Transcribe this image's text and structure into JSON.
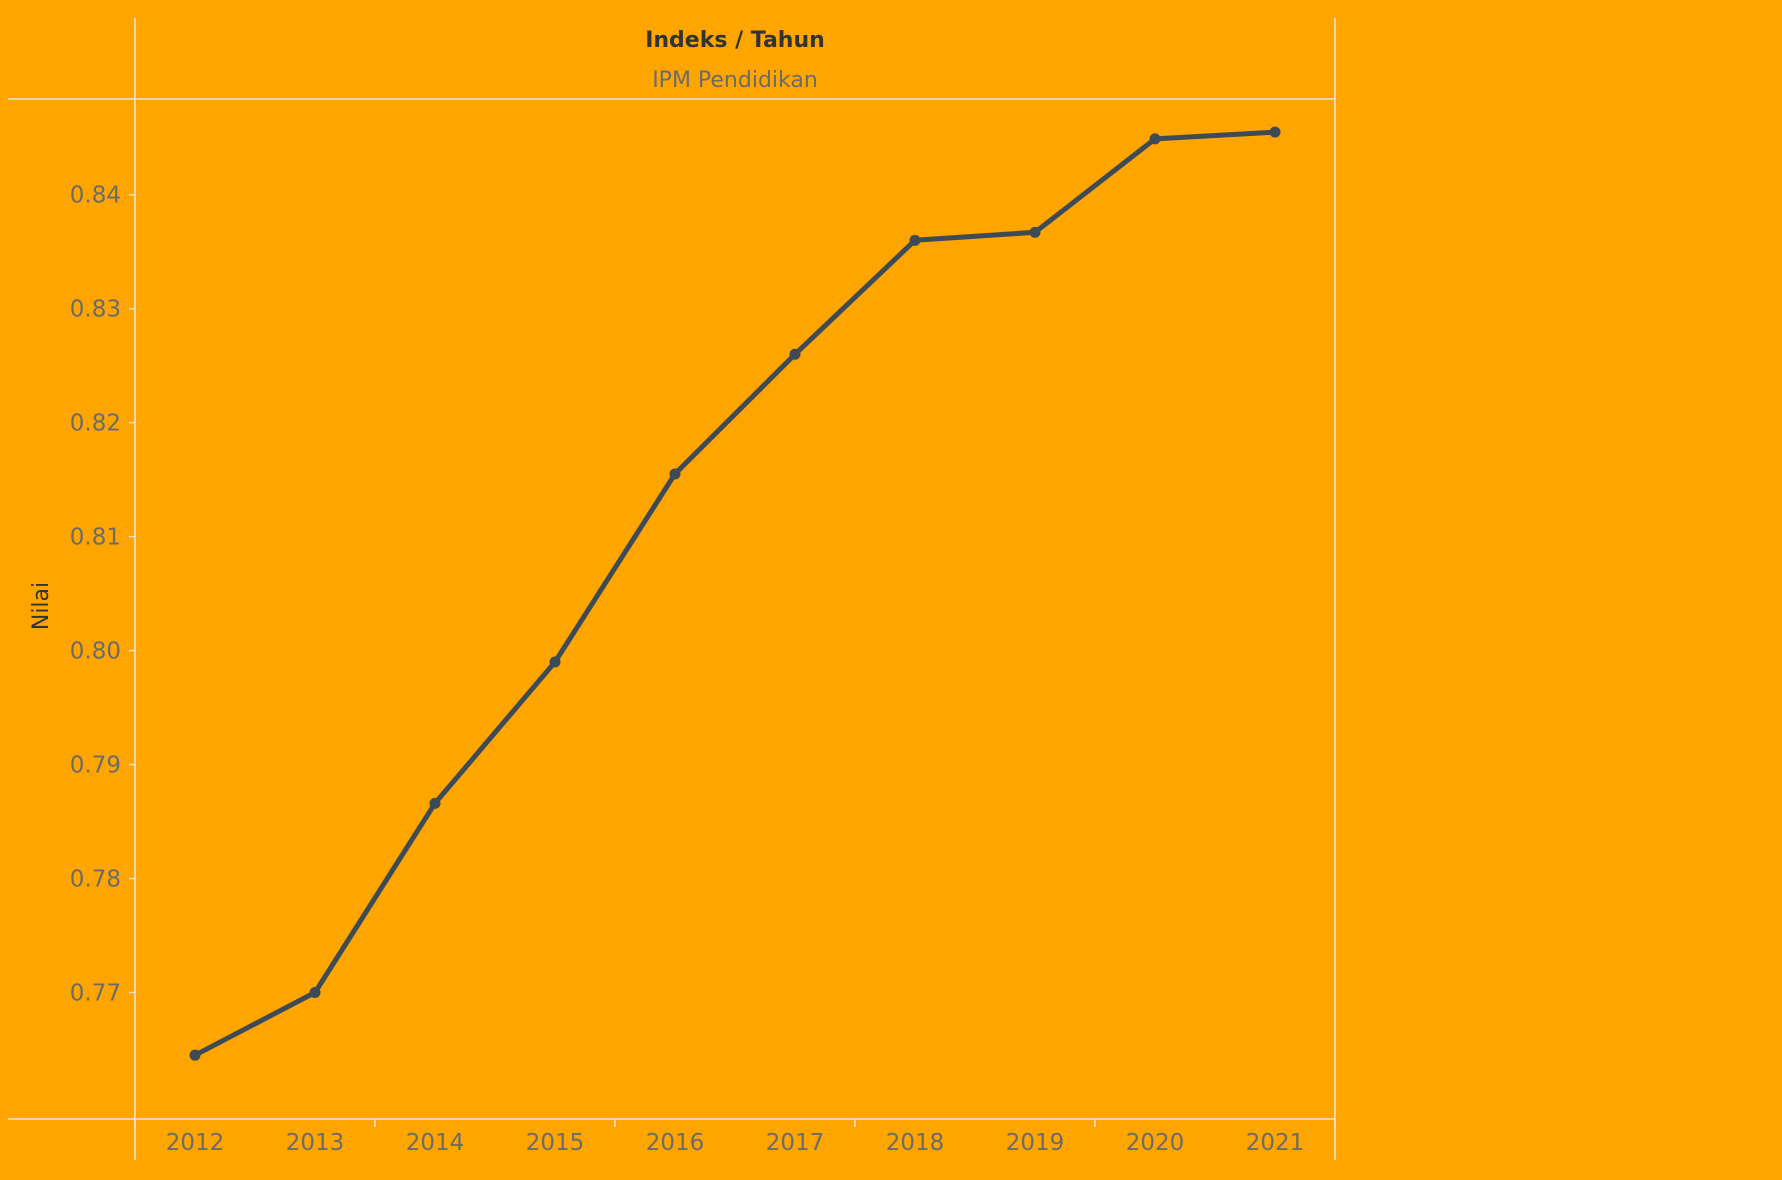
{
  "header": {
    "title": "Indeks / Tahun",
    "subtitle": "IPM Pendidikan"
  },
  "colors": {
    "background": "#FFA500",
    "line": "#3D4B57",
    "frame": "#E4E4E4",
    "tick_text": "#6B6B6B"
  },
  "chart_data": {
    "type": "line",
    "title": "Indeks / Tahun",
    "subtitle": "IPM Pendidikan",
    "xlabel": "",
    "ylabel": "Nilai",
    "categories": [
      "2012",
      "2013",
      "2014",
      "2015",
      "2016",
      "2017",
      "2018",
      "2019",
      "2020",
      "2021"
    ],
    "series": [
      {
        "values": [
          0.7645,
          0.77,
          0.7866,
          0.799,
          0.8155,
          0.826,
          0.836,
          0.8367,
          0.8449,
          0.8455
        ]
      }
    ],
    "yticks": [
      "0.77",
      "0.78",
      "0.79",
      "0.80",
      "0.81",
      "0.82",
      "0.83",
      "0.84"
    ],
    "ylim": [
      0.7589,
      0.8484
    ],
    "grid": false,
    "markers": true
  }
}
